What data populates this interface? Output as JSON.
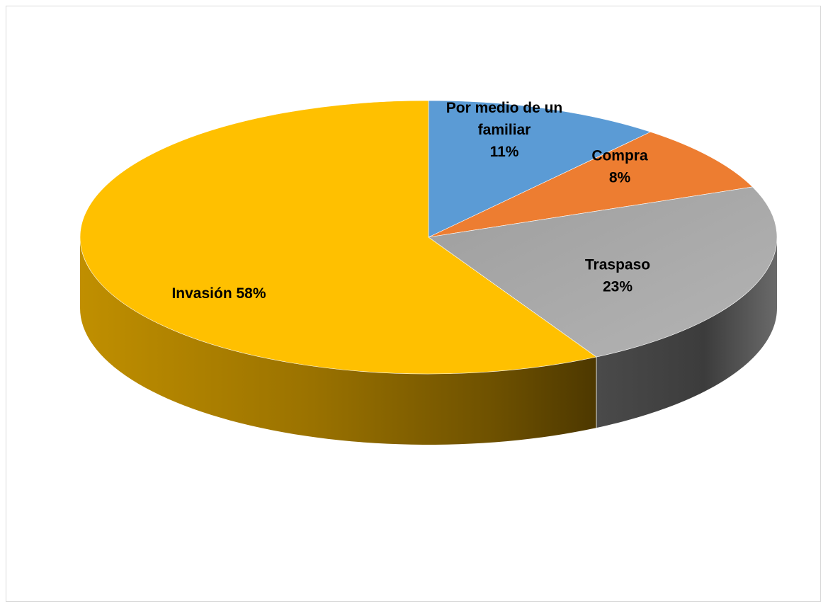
{
  "chart_data": {
    "type": "pie",
    "style": "3d",
    "title": "",
    "slices": [
      {
        "label": "Por medio de un familiar",
        "label_lines": [
          "Por medio de un",
          "familiar",
          "11%"
        ],
        "value": 11,
        "color": "#5b9bd5"
      },
      {
        "label": "Compra",
        "label_lines": [
          "Compra",
          "8%"
        ],
        "value": 8,
        "color": "#ed7d31"
      },
      {
        "label": "Traspaso",
        "label_lines": [
          "Traspaso",
          "23%"
        ],
        "value": 23,
        "color": "#a5a5a5"
      },
      {
        "label": "Invasión",
        "label_lines": [
          "Invasión 58%"
        ],
        "value": 58,
        "color": "#ffc000"
      }
    ],
    "legend": "none",
    "data_labels": "inside"
  }
}
